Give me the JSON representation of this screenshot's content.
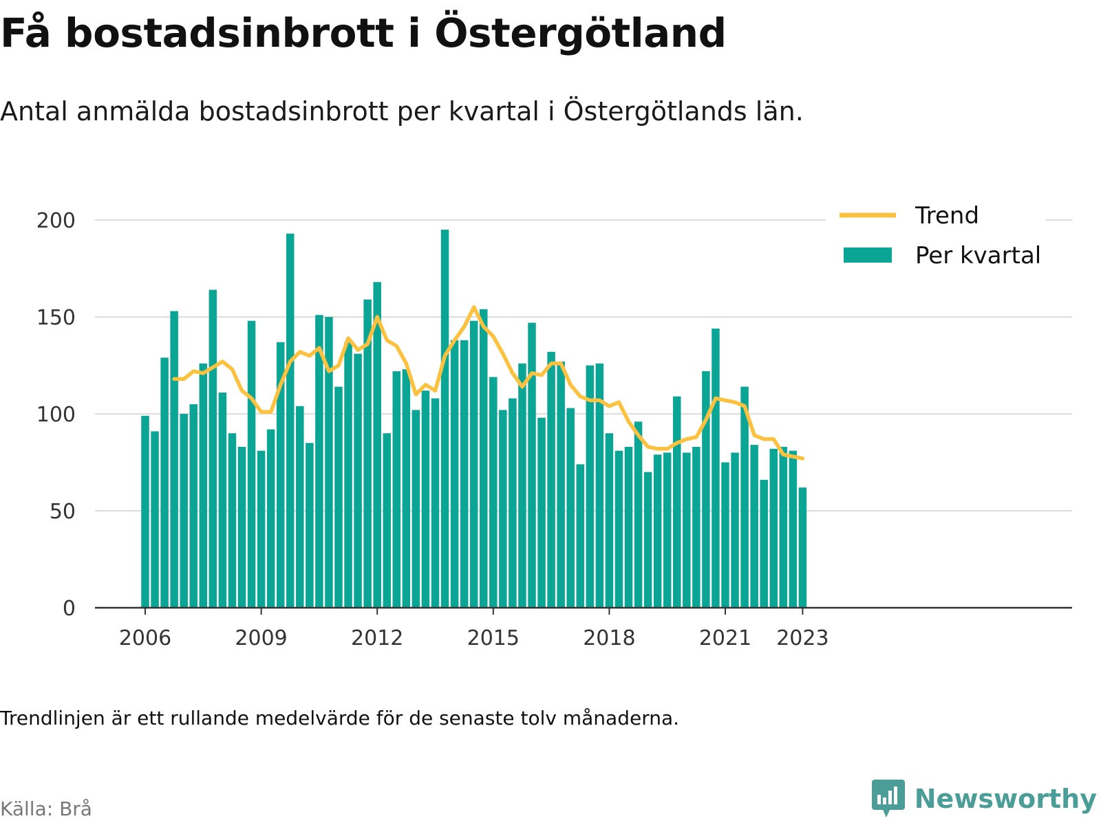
{
  "title": "Få bostadsinbrott i Östergötland",
  "subtitle": "Antal anmälda bostadsinbrott per kvartal i Östergötlands län.",
  "note": "Trendlinjen är ett rullande medelvärde för de senaste tolv månaderna.",
  "source": "Källa: Brå",
  "brand": "Newsworthy",
  "colors": {
    "bars": "#0aa595",
    "trend": "#fdc140",
    "grid": "#dddddd",
    "axis": "#333333",
    "brand": "#4a9e97"
  },
  "chart_data": {
    "type": "bar",
    "ylim": [
      0,
      200
    ],
    "yticks": [
      0,
      50,
      100,
      150,
      200
    ],
    "xticks": [
      2006,
      2009,
      2012,
      2015,
      2018,
      2021,
      2023
    ],
    "grid": true,
    "legend_position": "top-right",
    "series": [
      {
        "name": "Per kvartal",
        "type": "bar",
        "x": [
          "2006-Q1",
          "2006-Q2",
          "2006-Q3",
          "2006-Q4",
          "2007-Q1",
          "2007-Q2",
          "2007-Q3",
          "2007-Q4",
          "2008-Q1",
          "2008-Q2",
          "2008-Q3",
          "2008-Q4",
          "2009-Q1",
          "2009-Q2",
          "2009-Q3",
          "2009-Q4",
          "2010-Q1",
          "2010-Q2",
          "2010-Q3",
          "2010-Q4",
          "2011-Q1",
          "2011-Q2",
          "2011-Q3",
          "2011-Q4",
          "2012-Q1",
          "2012-Q2",
          "2012-Q3",
          "2012-Q4",
          "2013-Q1",
          "2013-Q2",
          "2013-Q3",
          "2013-Q4",
          "2014-Q1",
          "2014-Q2",
          "2014-Q3",
          "2014-Q4",
          "2015-Q1",
          "2015-Q2",
          "2015-Q3",
          "2015-Q4",
          "2016-Q1",
          "2016-Q2",
          "2016-Q3",
          "2016-Q4",
          "2017-Q1",
          "2017-Q2",
          "2017-Q3",
          "2017-Q4",
          "2018-Q1",
          "2018-Q2",
          "2018-Q3",
          "2018-Q4",
          "2019-Q1",
          "2019-Q2",
          "2019-Q3",
          "2019-Q4",
          "2020-Q1",
          "2020-Q2",
          "2020-Q3",
          "2020-Q4",
          "2021-Q1",
          "2021-Q2",
          "2021-Q3",
          "2021-Q4",
          "2022-Q1",
          "2022-Q2",
          "2022-Q3",
          "2022-Q4",
          "2023-Q1"
        ],
        "values": [
          99,
          91,
          129,
          153,
          100,
          105,
          126,
          164,
          111,
          90,
          83,
          148,
          81,
          92,
          137,
          193,
          104,
          85,
          151,
          150,
          114,
          137,
          131,
          159,
          168,
          90,
          122,
          123,
          102,
          112,
          108,
          195,
          138,
          138,
          148,
          154,
          119,
          102,
          108,
          126,
          147,
          98,
          132,
          127,
          103,
          74,
          125,
          126,
          90,
          81,
          83,
          96,
          70,
          79,
          80,
          109,
          80,
          83,
          122,
          144,
          75,
          80,
          114,
          84,
          66,
          82,
          83,
          81,
          62
        ]
      },
      {
        "name": "Trend",
        "type": "line",
        "x": [
          "2006-Q4",
          "2007-Q1",
          "2007-Q2",
          "2007-Q3",
          "2007-Q4",
          "2008-Q1",
          "2008-Q2",
          "2008-Q3",
          "2008-Q4",
          "2009-Q1",
          "2009-Q2",
          "2009-Q3",
          "2009-Q4",
          "2010-Q1",
          "2010-Q2",
          "2010-Q3",
          "2010-Q4",
          "2011-Q1",
          "2011-Q2",
          "2011-Q3",
          "2011-Q4",
          "2012-Q1",
          "2012-Q2",
          "2012-Q3",
          "2012-Q4",
          "2013-Q1",
          "2013-Q2",
          "2013-Q3",
          "2013-Q4",
          "2014-Q1",
          "2014-Q2",
          "2014-Q3",
          "2014-Q4",
          "2015-Q1",
          "2015-Q2",
          "2015-Q3",
          "2015-Q4",
          "2016-Q1",
          "2016-Q2",
          "2016-Q3",
          "2016-Q4",
          "2017-Q1",
          "2017-Q2",
          "2017-Q3",
          "2017-Q4",
          "2018-Q1",
          "2018-Q2",
          "2018-Q3",
          "2018-Q4",
          "2019-Q1",
          "2019-Q2",
          "2019-Q3",
          "2019-Q4",
          "2020-Q1",
          "2020-Q2",
          "2020-Q3",
          "2020-Q4",
          "2021-Q1",
          "2021-Q2",
          "2021-Q3",
          "2021-Q4",
          "2022-Q1",
          "2022-Q2",
          "2022-Q3",
          "2022-Q4",
          "2023-Q1"
        ],
        "values": [
          118,
          118,
          122,
          121,
          124,
          127,
          123,
          112,
          108,
          101,
          101,
          115,
          127,
          132,
          130,
          134,
          122,
          125,
          139,
          133,
          136,
          150,
          138,
          135,
          126,
          110,
          115,
          112,
          130,
          138,
          145,
          155,
          145,
          140,
          131,
          121,
          114,
          121,
          120,
          126,
          126,
          115,
          109,
          107,
          107,
          104,
          106,
          96,
          89,
          83,
          82,
          82,
          85,
          87,
          88,
          97,
          108,
          107,
          106,
          104,
          89,
          87,
          87,
          79,
          78,
          77
        ]
      }
    ]
  }
}
